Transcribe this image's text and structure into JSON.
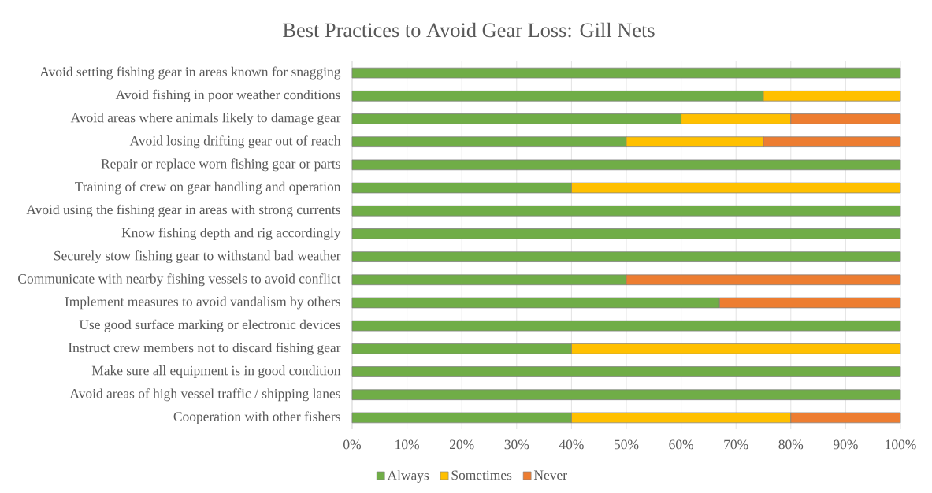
{
  "chart_data": {
    "type": "bar",
    "orientation": "horizontal",
    "stacked": true,
    "title": "Best Practices to Avoid Gear Loss: Gill Nets",
    "categories": [
      "Avoid setting fishing gear in areas known for snagging",
      "Avoid fishing in poor weather conditions",
      "Avoid areas where animals likely to damage gear",
      "Avoid losing drifting gear out of reach",
      "Repair or replace worn fishing gear or parts",
      "Training of crew on gear handling and operation",
      "Avoid using the fishing gear in areas with strong currents",
      "Know fishing depth and rig accordingly",
      "Securely stow fishing gear to withstand bad weather",
      "Communicate with nearby fishing vessels to avoid conflict",
      "Implement measures to avoid vandalism by others",
      "Use good surface marking or electronic devices",
      "Instruct crew members not to discard fishing gear",
      "Make sure all equipment is in good condition",
      "Avoid areas of high vessel traffic / shipping lanes",
      "Cooperation with other fishers"
    ],
    "series": [
      {
        "name": "Always",
        "color": "#70ad47",
        "values": [
          100,
          75,
          60,
          50,
          100,
          40,
          100,
          100,
          100,
          50,
          67,
          100,
          40,
          100,
          100,
          40
        ]
      },
      {
        "name": "Sometimes",
        "color": "#ffc000",
        "values": [
          0,
          25,
          20,
          25,
          0,
          60,
          0,
          0,
          0,
          0,
          0,
          0,
          60,
          0,
          0,
          40
        ]
      },
      {
        "name": "Never",
        "color": "#ed7d31",
        "values": [
          0,
          0,
          20,
          25,
          0,
          0,
          0,
          0,
          0,
          50,
          33,
          0,
          0,
          0,
          0,
          20
        ]
      }
    ],
    "xlim": [
      0,
      100
    ],
    "xticks": [
      {
        "value": 0,
        "label": "0%"
      },
      {
        "value": 10,
        "label": "10%"
      },
      {
        "value": 20,
        "label": "20%"
      },
      {
        "value": 30,
        "label": "30%"
      },
      {
        "value": 40,
        "label": "40%"
      },
      {
        "value": 50,
        "label": "50%"
      },
      {
        "value": 60,
        "label": "60%"
      },
      {
        "value": 70,
        "label": "70%"
      },
      {
        "value": 80,
        "label": "80%"
      },
      {
        "value": 90,
        "label": "90%"
      },
      {
        "value": 100,
        "label": "100%"
      }
    ],
    "grid": "x",
    "legend": "bottom"
  }
}
